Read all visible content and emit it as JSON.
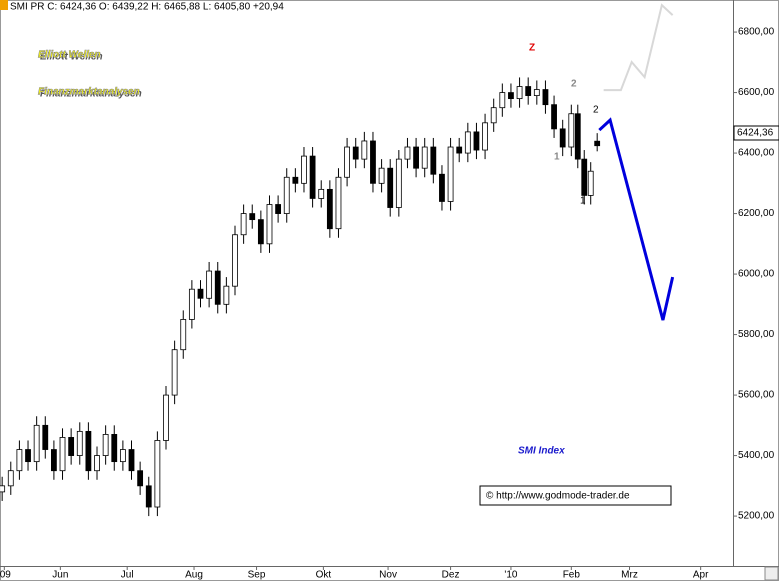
{
  "chart_data": {
    "type": "candlestick",
    "header": "SMI PR C: 6424,36 O: 6439,22 H: 6465,88 L: 6405,80 +20,94",
    "title_line1": "Elliott Wellen",
    "title_line2": "Finanzmarktanalysen",
    "index_label": "SMI Index",
    "source": "© http://www.godmode-trader.de",
    "last_price_label": "6424,36",
    "annotations": [
      "Z",
      "2",
      "1",
      "2",
      "1"
    ],
    "x": [
      1,
      5,
      9,
      13,
      17,
      21,
      25,
      29,
      33,
      37,
      41,
      45,
      49,
      53,
      57,
      61,
      65,
      69,
      73,
      77,
      81,
      85,
      89,
      93,
      97,
      101,
      105,
      109,
      113,
      117,
      121,
      125,
      129,
      133,
      137,
      141,
      145,
      149,
      153,
      157,
      161,
      165,
      169,
      173,
      177,
      181,
      185,
      189,
      193,
      197,
      201,
      205,
      209,
      213,
      217,
      221,
      225,
      229,
      233,
      237,
      241,
      245,
      249,
      253,
      257,
      261,
      265,
      268,
      271,
      274,
      277
    ],
    "open": [
      5280,
      5300,
      5350,
      5420,
      5380,
      5500,
      5420,
      5350,
      5460,
      5400,
      5480,
      5350,
      5400,
      5470,
      5380,
      5420,
      5350,
      5300,
      5230,
      5450,
      5600,
      5750,
      5850,
      5950,
      5920,
      6010,
      5900,
      5960,
      6130,
      6200,
      6180,
      6100,
      6230,
      6200,
      6320,
      6300,
      6390,
      6250,
      6280,
      6150,
      6320,
      6420,
      6380,
      6440,
      6300,
      6350,
      6220,
      6380,
      6420,
      6350,
      6420,
      6330,
      6240,
      6420,
      6400,
      6470,
      6410,
      6500,
      6550,
      6600,
      6580,
      6620,
      6590,
      6610,
      6560,
      6480,
      6420,
      6530,
      6380,
      6260,
      6439.22
    ],
    "high": [
      5330,
      5380,
      5450,
      5450,
      5530,
      5530,
      5450,
      5490,
      5490,
      5510,
      5510,
      5430,
      5500,
      5500,
      5450,
      5450,
      5380,
      5330,
      5480,
      5630,
      5780,
      5880,
      5980,
      5980,
      6040,
      6040,
      5990,
      6160,
      6230,
      6230,
      6210,
      6260,
      6260,
      6350,
      6350,
      6420,
      6420,
      6310,
      6310,
      6350,
      6450,
      6450,
      6470,
      6470,
      6380,
      6380,
      6410,
      6450,
      6450,
      6450,
      6450,
      6360,
      6450,
      6450,
      6500,
      6500,
      6530,
      6580,
      6630,
      6630,
      6650,
      6650,
      6640,
      6640,
      6590,
      6510,
      6560,
      6560,
      6410,
      6370,
      6465.88
    ],
    "low": [
      5250,
      5270,
      5320,
      5350,
      5350,
      5390,
      5320,
      5320,
      5370,
      5370,
      5320,
      5320,
      5370,
      5350,
      5350,
      5320,
      5270,
      5200,
      5200,
      5420,
      5570,
      5720,
      5820,
      5890,
      5890,
      5870,
      5870,
      5930,
      6100,
      6150,
      6070,
      6070,
      6170,
      6170,
      6270,
      6270,
      6220,
      6220,
      6120,
      6120,
      6290,
      6350,
      6350,
      6270,
      6270,
      6190,
      6190,
      6350,
      6320,
      6320,
      6300,
      6210,
      6210,
      6370,
      6370,
      6380,
      6380,
      6470,
      6520,
      6550,
      6550,
      6560,
      6560,
      6530,
      6450,
      6390,
      6390,
      6350,
      6230,
      6230,
      6405.8
    ],
    "close": [
      5300,
      5350,
      5420,
      5380,
      5500,
      5420,
      5350,
      5460,
      5400,
      5480,
      5350,
      5400,
      5470,
      5380,
      5420,
      5350,
      5300,
      5230,
      5450,
      5600,
      5750,
      5850,
      5950,
      5920,
      6010,
      5900,
      5960,
      6130,
      6200,
      6180,
      6100,
      6230,
      6200,
      6320,
      6300,
      6390,
      6250,
      6280,
      6150,
      6320,
      6420,
      6380,
      6440,
      6300,
      6350,
      6220,
      6380,
      6420,
      6350,
      6420,
      6330,
      6240,
      6420,
      6400,
      6470,
      6410,
      6500,
      6550,
      6600,
      6580,
      6620,
      6590,
      6610,
      6560,
      6480,
      6420,
      6530,
      6380,
      6260,
      6340,
      6424.36
    ],
    "projections": [
      {
        "color": "#0000dd",
        "x": [
          278,
          283,
          307.5,
          312
        ],
        "values": [
          6476,
          6509,
          5848,
          5990
        ]
      },
      {
        "color": "#d8d8d8",
        "x": [
          280,
          288,
          293,
          299,
          307,
          312
        ],
        "values": [
          6608,
          6608,
          6701,
          6651,
          6889,
          6856
        ]
      }
    ],
    "xlim": [
      0,
      340
    ],
    "xticks": [
      {
        "value": 2,
        "label": "'09"
      },
      {
        "value": 28,
        "label": "Jun"
      },
      {
        "value": 59,
        "label": "Jul"
      },
      {
        "value": 90,
        "label": "Aug"
      },
      {
        "value": 119,
        "label": "Sep"
      },
      {
        "value": 150,
        "label": "Okt"
      },
      {
        "value": 180,
        "label": "Nov"
      },
      {
        "value": 209,
        "label": "Dez"
      },
      {
        "value": 237,
        "label": "'10"
      },
      {
        "value": 265,
        "label": "Feb"
      },
      {
        "value": 292,
        "label": "Mrz"
      },
      {
        "value": 325,
        "label": "Apr"
      }
    ],
    "ylim": [
      5035,
      6906
    ],
    "yticks": [
      {
        "value": 5200,
        "label": "5200,00"
      },
      {
        "value": 5400,
        "label": "5400,00"
      },
      {
        "value": 5600,
        "label": "5600,00"
      },
      {
        "value": 5800,
        "label": "5800,00"
      },
      {
        "value": 6000,
        "label": "6000,00"
      },
      {
        "value": 6200,
        "label": "6200,00"
      },
      {
        "value": 6400,
        "label": "6400,00"
      },
      {
        "value": 6600,
        "label": "6600,00"
      },
      {
        "value": 6800,
        "label": "6800,00"
      }
    ]
  }
}
